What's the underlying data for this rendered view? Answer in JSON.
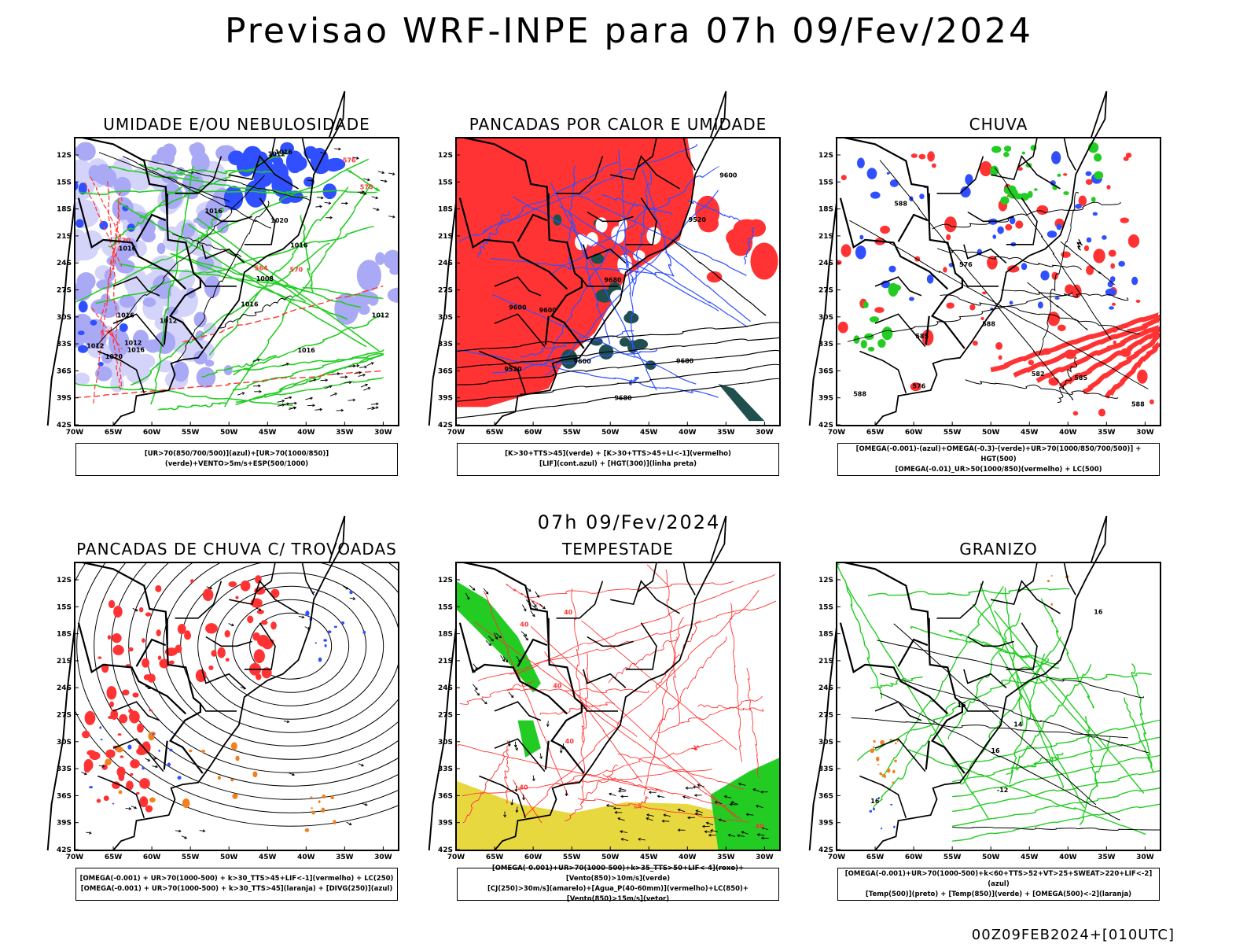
{
  "title": "Previsao WRF-INPE  para 07h 09/Fev/2024",
  "mid_date": "07h 09/Fev/2024",
  "footer": "00Z09FEB2024+[010UTC]",
  "axes": {
    "lat_ticks": [
      "12S",
      "15S",
      "18S",
      "21S",
      "24S",
      "27S",
      "30S",
      "33S",
      "36S",
      "39S",
      "42S"
    ],
    "lon_ticks": [
      "70W",
      "65W",
      "60W",
      "55W",
      "50W",
      "45W",
      "40W",
      "35W",
      "30W"
    ]
  },
  "colors": {
    "blue": "#3050ff",
    "lavender": "#a9a9f5",
    "light_lavender": "#d4d4fa",
    "green": "#22cc22",
    "red": "#ff3333",
    "dark_teal": "#1f4f4f",
    "orange": "#f08020",
    "yellow": "#e8d840",
    "black": "#000000"
  },
  "panels": [
    {
      "id": "umidade",
      "title": "UMIDADE E/OU NEBULOSIDADE",
      "legend": [
        "[UR>70(850/700/500)](azul)+[UR>70(1000/850)](verde)+VENTO>5m/s+ESP(500/1000)"
      ],
      "labels": [
        "1016",
        "1012",
        "1016",
        "1012",
        "1008",
        "1016",
        "1016",
        "1012",
        "1016",
        "1012",
        "1016",
        "1020",
        "1020",
        "1016",
        "1016",
        "1012",
        "570",
        "576",
        "570",
        "564",
        "570",
        "576"
      ]
    },
    {
      "id": "pancadas-calor",
      "title": "PANCADAS POR CALOR E UMIDADE",
      "legend": [
        "[K>30+TTS>45](verde) + [K>30+TTS>45+LI<-1](vermelho)",
        "[LIF](cont.azul) + [HGT(300)](linha preta)"
      ],
      "labels": [
        "9680",
        "9680",
        "9680",
        "9600",
        "9520",
        "9600",
        "9600",
        "9600",
        "9520"
      ]
    },
    {
      "id": "chuva",
      "title": "CHUVA",
      "legend": [
        "[OMEGA(-0.001)-(azul)+OMEGA(-0.3)-(verde)+UR>70(1000/850/700/500)] + HGT(500)",
        "[OMEGA(-0.01)_UR>50(1000/850)(vermelho) + LC(500)"
      ],
      "labels": [
        "588",
        "588",
        "588",
        "585",
        "582",
        "576",
        "576",
        "585",
        "588"
      ]
    },
    {
      "id": "pancadas-trovoadas",
      "title": "PANCADAS DE CHUVA C/ TROVOADAS",
      "legend": [
        "[OMEGA(-0.001) + UR>70(1000-500) + k>30_TTS>45+LIF<-1](vermelho) + LC(250)",
        "[OMEGA(-0.001) + UR>70(1000-500) + k>30_TTS>45](laranja) + [DIVG(250)](azul)"
      ],
      "labels": []
    },
    {
      "id": "tempestade",
      "title": "TEMPESTADE",
      "legend": [
        "[OMEGA(-0.001)+UR>70(1000-500)+k>35_TTS>50+LIF<-4](roxo)+[Vento(850)>10m/s](verde)",
        "[CJ(250)>30m/s](amarelo)+[Agua_P(40-60mm)](vermelho)+LC(850)+[Vento(850)>15m/s](vetor)"
      ],
      "labels": [
        "40",
        "40",
        "40",
        "40",
        "40",
        "40"
      ]
    },
    {
      "id": "granizo",
      "title": "GRANIZO",
      "legend": [
        "[OMEGA(-0.001)+UR>70(1000-500)+k<60+TTS>52+VT>25+SWEAT>220+LIF<-2](azul)",
        "[Temp(500)](preto) + [Temp(850)](verde) + [OMEGA(500)<-2](laranja)"
      ],
      "labels": [
        "16",
        "16",
        "16",
        "14",
        "16",
        "-12"
      ]
    }
  ]
}
